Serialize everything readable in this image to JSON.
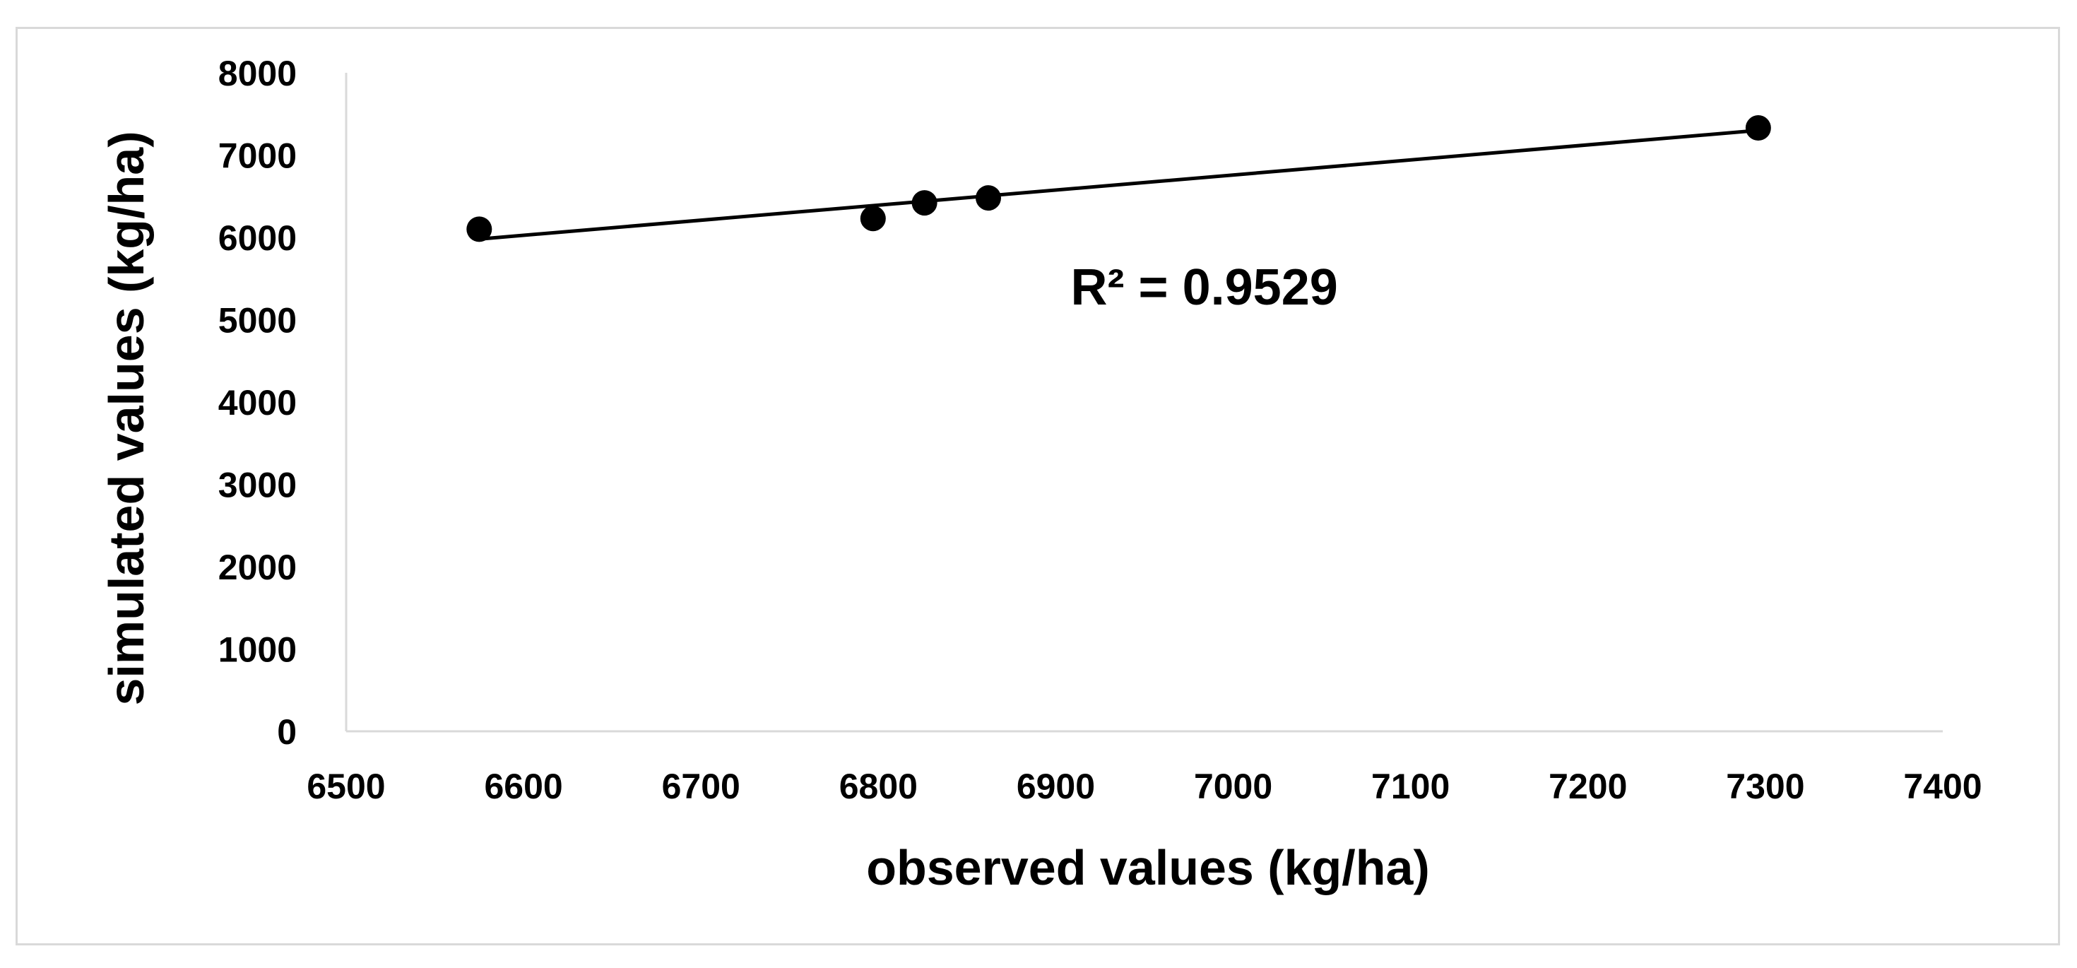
{
  "chart_data": {
    "type": "scatter",
    "xlabel": "observed values (kg/ha)",
    "ylabel": "simulated values (kg/ha)",
    "xlim": [
      6500,
      7400
    ],
    "ylim": [
      0,
      8000
    ],
    "x_ticks": [
      6500,
      6600,
      6700,
      6800,
      6900,
      7000,
      7100,
      7200,
      7300,
      7400
    ],
    "y_ticks": [
      0,
      1000,
      2000,
      3000,
      4000,
      5000,
      6000,
      7000,
      8000
    ],
    "grid": false,
    "legend": "none",
    "series": [
      {
        "points": [
          {
            "x": 6575,
            "y": 6100
          },
          {
            "x": 6797,
            "y": 6230
          },
          {
            "x": 6826,
            "y": 6420
          },
          {
            "x": 6862,
            "y": 6480
          },
          {
            "x": 7296,
            "y": 7330
          }
        ],
        "marker_color": "#000000"
      }
    ],
    "trendline": {
      "from": {
        "x": 6575,
        "y": 5980
      },
      "to": {
        "x": 7296,
        "y": 7300
      },
      "color": "#000000"
    },
    "annotations": [
      {
        "text": "R² = 0.9529",
        "x": 7000,
        "y": 5400
      }
    ],
    "axis_color": "#d9d9d9"
  }
}
